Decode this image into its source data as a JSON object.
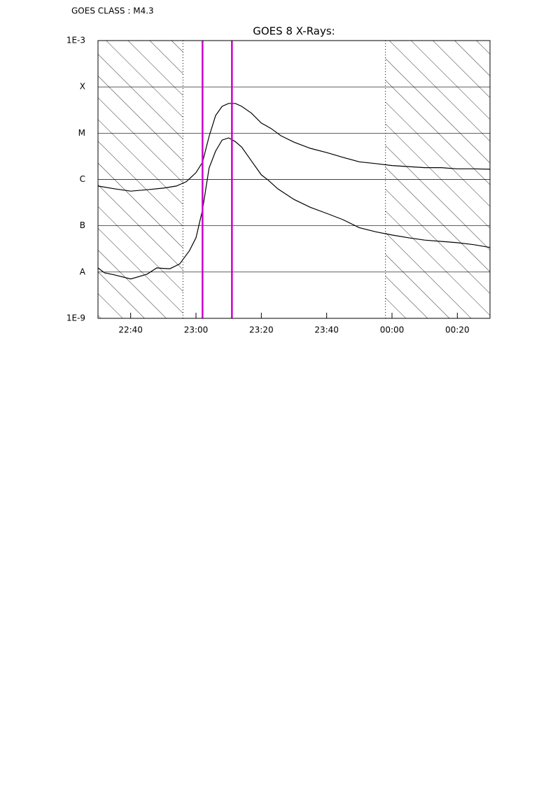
{
  "chart_data": {
    "type": "line",
    "header": "GOES CLASS : M4.3",
    "title": "GOES 8 X-Rays:",
    "log_y": true,
    "grid": true,
    "ylim": [
      1e-09,
      0.001
    ],
    "yticks": [
      {
        "value": 1e-09,
        "label": "1E-9"
      },
      {
        "value": 1e-08,
        "label": "A"
      },
      {
        "value": 1e-07,
        "label": "B"
      },
      {
        "value": 1e-06,
        "label": "C"
      },
      {
        "value": 1e-05,
        "label": "M"
      },
      {
        "value": 0.0001,
        "label": "X"
      },
      {
        "value": 0.001,
        "label": "1E-3"
      }
    ],
    "xlim": [
      "22:30",
      "00:30"
    ],
    "xticks": [
      "22:40",
      "23:00",
      "23:20",
      "23:40",
      "00:00",
      "00:20"
    ],
    "hatched_intervals": [
      [
        "22:30",
        "22:56"
      ],
      [
        "23:58",
        "00:30"
      ]
    ],
    "markers": [
      "23:02",
      "23:11"
    ],
    "marker_color": "#cc00cc",
    "series": [
      {
        "color": "#000000",
        "x": [
          "22:30",
          "22:35",
          "22:40",
          "22:45",
          "22:50",
          "22:54",
          "22:57",
          "23:00",
          "23:02",
          "23:04",
          "23:06",
          "23:08",
          "23:10",
          "23:12",
          "23:14",
          "23:17",
          "23:20",
          "23:23",
          "23:26",
          "23:30",
          "23:35",
          "23:40",
          "23:45",
          "23:50",
          "23:55",
          "00:00",
          "00:05",
          "00:10",
          "00:15",
          "00:20",
          "00:25",
          "00:30"
        ],
        "values": [
          7.2e-07,
          6.3e-07,
          5.6e-07,
          6e-07,
          6.5e-07,
          7.2e-07,
          8.9e-07,
          1.4e-06,
          2.35e-06,
          8.5e-06,
          2.4e-05,
          3.8e-05,
          4.4e-05,
          4.4e-05,
          3.8e-05,
          2.7e-05,
          1.65e-05,
          1.26e-05,
          8.8e-06,
          6.4e-06,
          4.7e-06,
          3.8e-06,
          3e-06,
          2.4e-06,
          2.2e-06,
          2e-06,
          1.9e-06,
          1.8e-06,
          1.8e-06,
          1.7e-06,
          1.7e-06,
          1.66e-06
        ]
      },
      {
        "color": "#000000",
        "x": [
          "22:30",
          "22:32",
          "22:35",
          "22:40",
          "22:45",
          "22:48",
          "22:50",
          "22:52",
          "22:55",
          "22:58",
          "23:00",
          "23:02",
          "23:04",
          "23:06",
          "23:08",
          "23:10",
          "23:12",
          "23:14",
          "23:17",
          "23:20",
          "23:22",
          "23:25",
          "23:30",
          "23:35",
          "23:40",
          "23:45",
          "23:50",
          "23:55",
          "00:00",
          "00:05",
          "00:10",
          "00:15",
          "00:20",
          "00:25",
          "00:30"
        ],
        "values": [
          1.23e-08,
          9.6e-09,
          8.7e-09,
          7.1e-09,
          9e-09,
          1.23e-08,
          1.2e-08,
          1.18e-08,
          1.5e-08,
          2.9e-08,
          5.5e-08,
          2.2e-07,
          1.77e-06,
          4.1e-06,
          7.1e-06,
          7.9e-06,
          6.6e-06,
          5e-06,
          2.5e-06,
          1.26e-06,
          9.8e-07,
          6.3e-07,
          3.7e-07,
          2.5e-07,
          1.85e-07,
          1.35e-07,
          9.1e-08,
          7.4e-08,
          6.3e-08,
          5.5e-08,
          4.9e-08,
          4.6e-08,
          4.3e-08,
          3.9e-08,
          3.4e-08
        ]
      }
    ]
  }
}
